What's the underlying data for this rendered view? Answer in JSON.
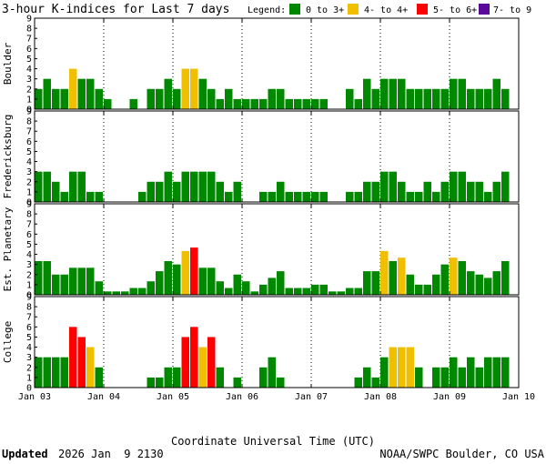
{
  "chart_data": {
    "type": "bar",
    "title": "3-hour K-indices for Last 7 days",
    "legend": {
      "label": "Legend:",
      "placement": "top-right",
      "entries": [
        {
          "name": "0 to 3+",
          "color": "#008800"
        },
        {
          "name": "4- to 4+",
          "color": "#f0c000"
        },
        {
          "name": "5- to 6+",
          "color": "#ff0000"
        },
        {
          "name": "7- to 9",
          "color": "#5a0a9a"
        }
      ]
    },
    "x_ticks": [
      "Jan 03",
      "Jan 04",
      "Jan 05",
      "Jan 06",
      "Jan 07",
      "Jan 08",
      "Jan 09",
      "Jan 10"
    ],
    "xlabel": "Coordinate Universal Time (UTC)",
    "ylim": [
      0,
      9
    ],
    "y_ticks": [
      "0",
      "1",
      "2",
      "3",
      "4",
      "5",
      "6",
      "7",
      "8",
      "9"
    ],
    "grid": true,
    "panels": [
      {
        "name": "Boulder",
        "values": [
          2,
          3,
          2,
          2,
          4,
          3,
          3,
          2,
          1,
          0,
          0,
          1,
          0,
          2,
          2,
          3,
          2,
          4,
          4,
          3,
          2,
          1,
          2,
          1,
          1,
          1,
          1,
          2,
          2,
          1,
          1,
          1,
          1,
          1,
          0,
          0,
          2,
          1,
          3,
          2,
          3,
          3,
          3,
          2,
          2,
          2,
          2,
          2,
          3,
          3,
          2,
          2,
          2,
          3,
          2,
          0
        ]
      },
      {
        "name": "Fredericksburg",
        "values": [
          3,
          3,
          2,
          1,
          3,
          3,
          1,
          1,
          0,
          0,
          0,
          0,
          1,
          2,
          2,
          3,
          2,
          3,
          3,
          3,
          3,
          2,
          1,
          2,
          0,
          0,
          1,
          1,
          2,
          1,
          1,
          1,
          1,
          1,
          0,
          0,
          1,
          1,
          2,
          2,
          3,
          3,
          2,
          1,
          1,
          2,
          1,
          2,
          3,
          3,
          2,
          2,
          1,
          2,
          3,
          0
        ]
      },
      {
        "name": "Est. Planetary",
        "values": [
          3.33,
          3.33,
          2,
          2,
          2.67,
          2.67,
          2.67,
          1.33,
          0.33,
          0.33,
          0.33,
          0.67,
          0.67,
          1.33,
          2.33,
          3.33,
          3,
          4.33,
          4.67,
          2.67,
          2.67,
          1.33,
          0.67,
          2,
          1.33,
          0.33,
          1,
          1.67,
          2.33,
          0.67,
          0.67,
          0.67,
          1,
          1,
          0.33,
          0.33,
          0.67,
          0.67,
          2.33,
          2.33,
          4.33,
          3.33,
          3.67,
          2,
          1,
          1,
          2,
          3,
          3.67,
          3.33,
          2.33,
          2,
          1.67,
          2.33,
          3.33,
          0
        ]
      },
      {
        "name": "College",
        "values": [
          3,
          3,
          3,
          3,
          6,
          5,
          4,
          2,
          0,
          0,
          0,
          0,
          0,
          1,
          1,
          2,
          2,
          5,
          6,
          4,
          5,
          2,
          0,
          1,
          0,
          0,
          2,
          3,
          1,
          0,
          0,
          0,
          0,
          0,
          0,
          0,
          0,
          1,
          2,
          1,
          3,
          4,
          4,
          4,
          2,
          0,
          2,
          2,
          3,
          2,
          3,
          2,
          3,
          3,
          3,
          0
        ]
      }
    ]
  },
  "footer": {
    "updated_label": "Updated",
    "updated_value": "2026 Jan  9 2130",
    "credit": "NOAA/SWPC Boulder, CO USA"
  }
}
